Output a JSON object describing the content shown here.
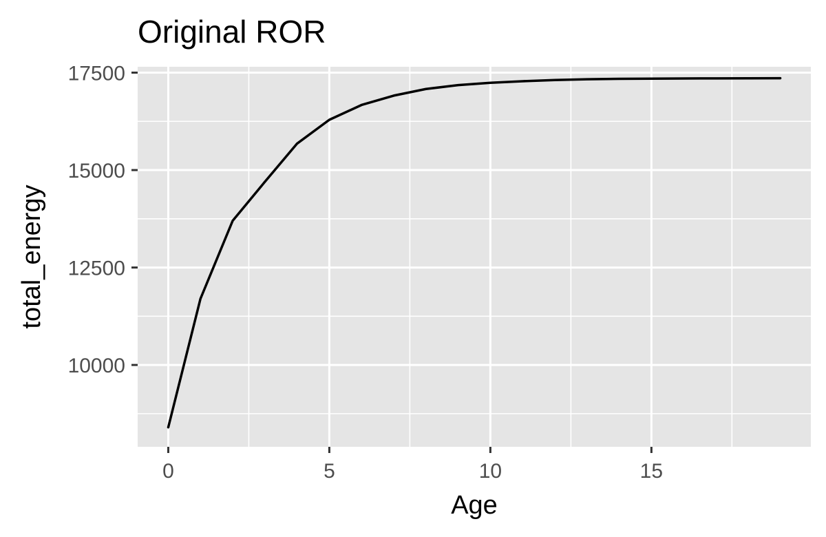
{
  "chart_data": {
    "type": "line",
    "title": "Original ROR",
    "xlabel": "Age",
    "ylabel": "total_energy",
    "xlim": [
      -0.95,
      19.95
    ],
    "ylim": [
      7900,
      17650
    ],
    "x_major_ticks": [
      0,
      5,
      10,
      15
    ],
    "x_minor_ticks": [
      2.5,
      7.5,
      12.5,
      17.5
    ],
    "y_major_ticks": [
      10000,
      12500,
      15000,
      17500
    ],
    "y_minor_ticks": [
      8750,
      11250,
      13750,
      16250
    ],
    "x_tick_labels": [
      "0",
      "5",
      "10",
      "15"
    ],
    "y_tick_labels": [
      "10000",
      "12500",
      "15000",
      "17500"
    ],
    "grid": true,
    "legend": "none",
    "series": [
      {
        "color": "#000000",
        "x": [
          0,
          1,
          2,
          3,
          4,
          5,
          6,
          7,
          8,
          9,
          10,
          11,
          12,
          13,
          14,
          15,
          16,
          17,
          18,
          19
        ],
        "y": [
          8400,
          11700,
          13700,
          14700,
          15680,
          16290,
          16670,
          16910,
          17080,
          17180,
          17240,
          17280,
          17310,
          17330,
          17340,
          17345,
          17350,
          17352,
          17354,
          17356
        ]
      }
    ]
  }
}
